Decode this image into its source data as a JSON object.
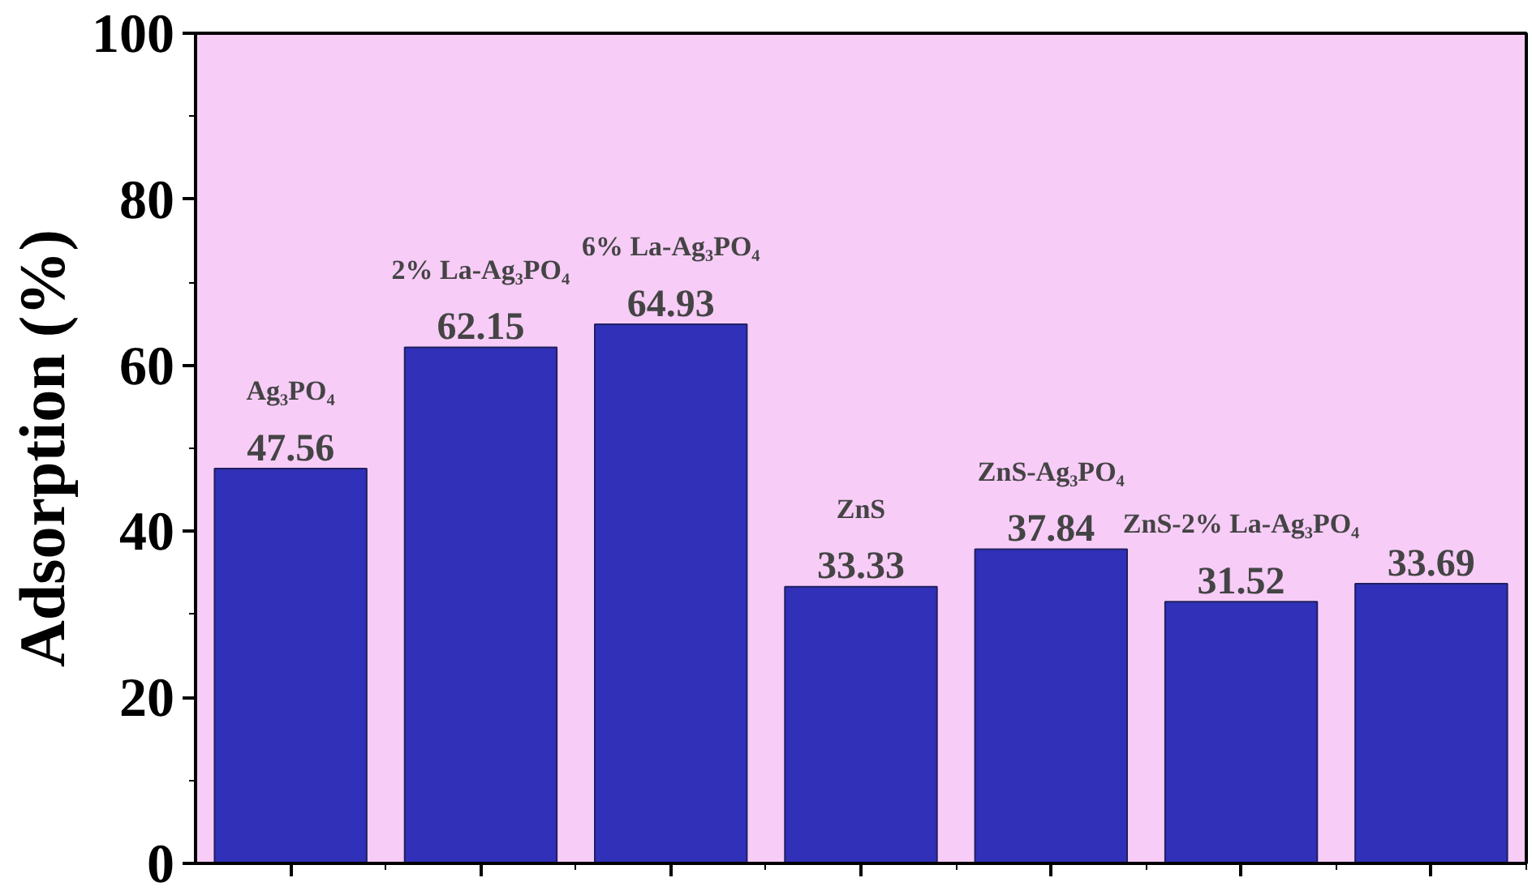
{
  "chart_data": {
    "type": "bar",
    "ylabel": "Adsorption (%)",
    "categories": [
      "Ag₃PO₄",
      "2% La-Ag₃PO₄",
      "6% La-Ag₃PO₄",
      "ZnS",
      "ZnS-Ag₃PO₄",
      "ZnS-2% La-Ag₃PO₄",
      null
    ],
    "values": [
      47.56,
      62.15,
      64.93,
      33.33,
      37.84,
      31.52,
      33.69
    ],
    "color": "#3030b8",
    "data_labels": true,
    "ylim": [
      0,
      100
    ],
    "yticks": [
      0,
      20,
      40,
      60,
      80,
      100
    ],
    "tick_labels": "y",
    "grid": false
  }
}
